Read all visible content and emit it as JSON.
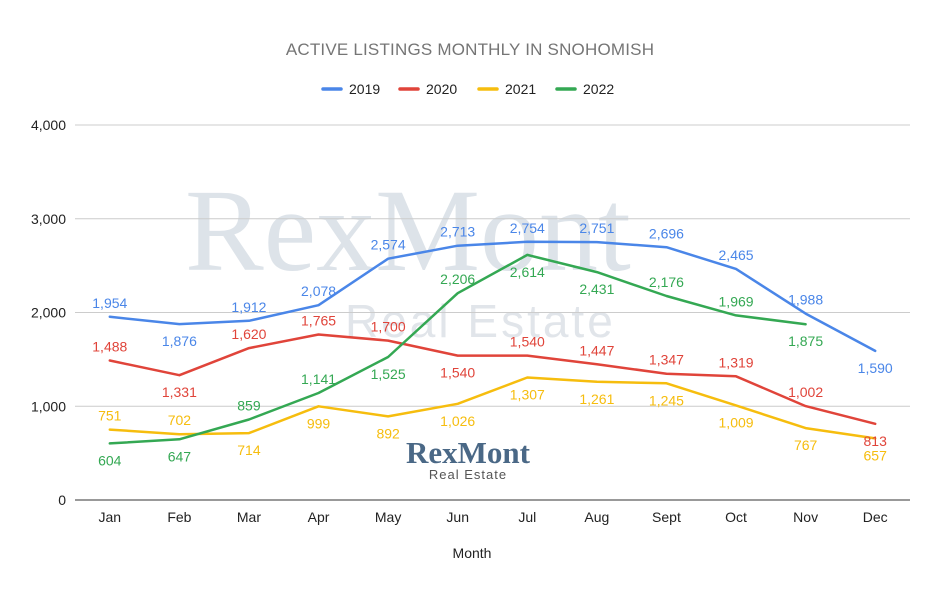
{
  "chart_data": {
    "type": "line",
    "title": "ACTIVE LISTINGS MONTHLY IN SNOHOMISH",
    "xlabel": "Month",
    "ylabel": "",
    "ylim": [
      0,
      4000
    ],
    "yticks": [
      0,
      1000,
      2000,
      3000,
      4000
    ],
    "ytick_labels": [
      "0",
      "1,000",
      "2,000",
      "3,000",
      "4,000"
    ],
    "grid": true,
    "legend_position": "top",
    "categories": [
      "Jan",
      "Feb",
      "Mar",
      "Apr",
      "May",
      "Jun",
      "Jul",
      "Aug",
      "Sept",
      "Oct",
      "Nov",
      "Dec"
    ],
    "series": [
      {
        "name": "2019",
        "color": "#4a86e8",
        "values": [
          1954,
          1876,
          1912,
          2078,
          2574,
          2713,
          2754,
          2751,
          2696,
          2465,
          1988,
          1590
        ]
      },
      {
        "name": "2020",
        "color": "#e0443a",
        "values": [
          1488,
          1331,
          1620,
          1765,
          1700,
          1540,
          1540,
          1447,
          1347,
          1319,
          1002,
          813
        ]
      },
      {
        "name": "2021",
        "color": "#f6bd0e",
        "values": [
          751,
          702,
          714,
          999,
          892,
          1026,
          1307,
          1261,
          1245,
          1009,
          767,
          657
        ]
      },
      {
        "name": "2022",
        "color": "#34a853",
        "values": [
          604,
          647,
          859,
          1141,
          1525,
          2206,
          2614,
          2431,
          2176,
          1969,
          1875,
          null
        ]
      }
    ]
  },
  "watermark": {
    "brand": "RexMont",
    "subtitle": "Real Estate"
  },
  "logo": {
    "brand": "RexMont",
    "subtitle": "Real Estate"
  }
}
